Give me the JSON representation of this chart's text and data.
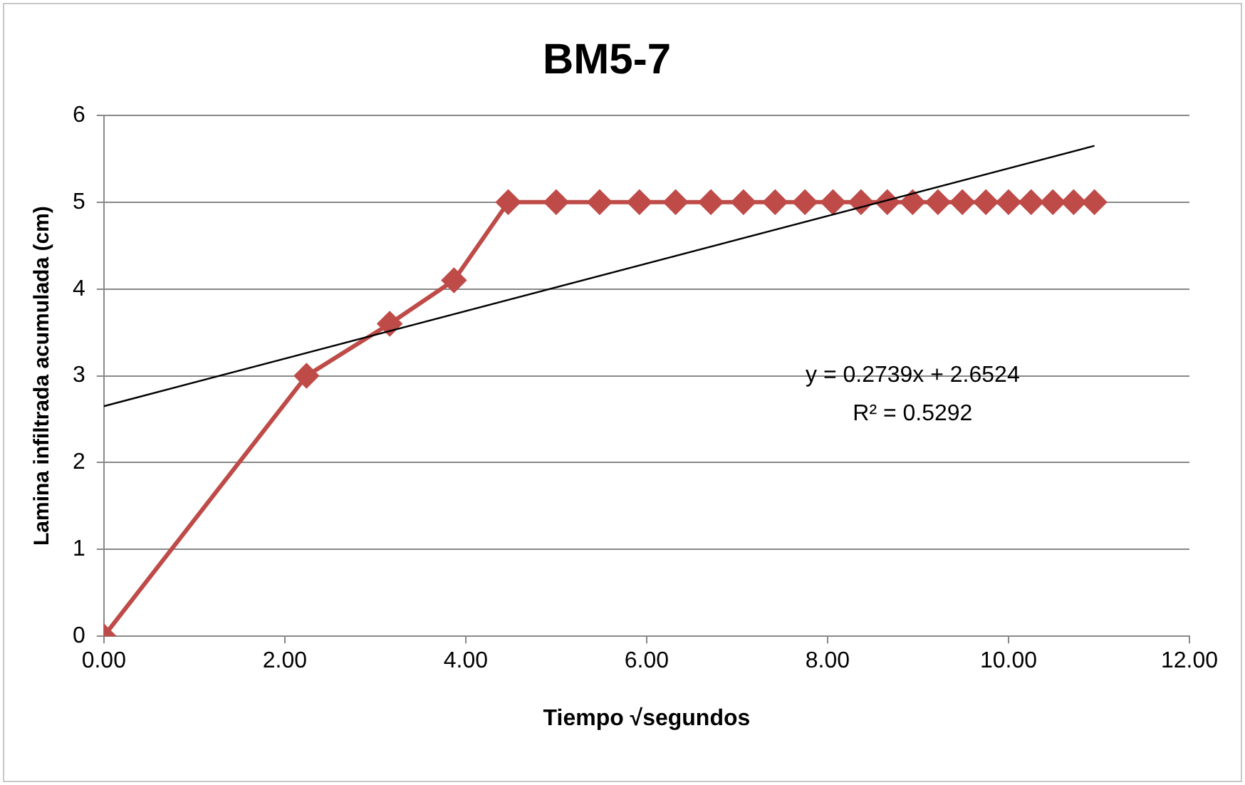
{
  "chart_data": {
    "type": "line",
    "title": "BM5-7",
    "xlabel": "Tiempo √segundos",
    "ylabel": "Lamina infiltrada acumulada (cm)",
    "series": [
      {
        "type": "line",
        "color": "#be4b48",
        "x": [
          0,
          2.24,
          3.16,
          3.87,
          4.47,
          5.0,
          5.48,
          5.92,
          6.32,
          6.71,
          7.07,
          7.42,
          7.75,
          8.06,
          8.37,
          8.66,
          8.94,
          9.22,
          9.49,
          9.75,
          10.0,
          10.25,
          10.49,
          10.72,
          10.95
        ],
        "values": [
          0,
          3,
          3.6,
          4.1,
          5,
          5,
          5,
          5,
          5,
          5,
          5,
          5,
          5,
          5,
          5,
          5,
          5,
          5,
          5,
          5,
          5,
          5,
          5,
          5,
          5
        ]
      },
      {
        "type": "line",
        "color": "#000000",
        "marker": "none",
        "x": [
          0,
          10.95
        ],
        "values": [
          2.65,
          5.65
        ]
      }
    ],
    "annotations": [
      "y = 0.2739x + 2.6524",
      "R² = 0.5292"
    ],
    "xlim": [
      0,
      12
    ],
    "xticks": [
      {
        "value": 0,
        "label": "0.00"
      },
      {
        "value": 2,
        "label": "2.00"
      },
      {
        "value": 4,
        "label": "4.00"
      },
      {
        "value": 6,
        "label": "6.00"
      },
      {
        "value": 8,
        "label": "8.00"
      },
      {
        "value": 10,
        "label": "10.00"
      },
      {
        "value": 12,
        "label": "12.00"
      }
    ],
    "ylim": [
      0,
      6
    ],
    "yticks": [
      0,
      1,
      2,
      3,
      4,
      5,
      6
    ],
    "grid": "y",
    "legend": false,
    "marker": "diamond",
    "line_style": "solid"
  }
}
